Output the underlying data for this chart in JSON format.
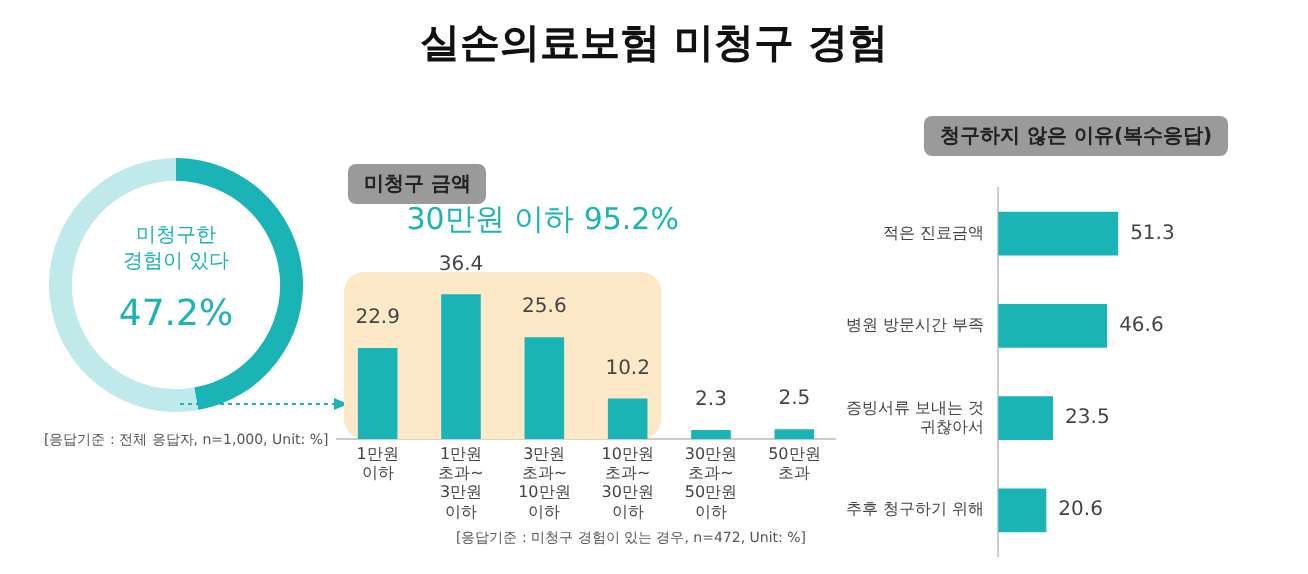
{
  "chart_data": [
    {
      "type": "donut",
      "title": "실손의료보험 미청구 경험",
      "categories": [
        "미청구한 경험이 있다",
        null
      ],
      "values": [
        47.2,
        52.8
      ],
      "colors": [
        "#1ab3b6",
        "#bfe9ea"
      ],
      "value_labels": [
        "47.2%",
        null
      ],
      "legend": false,
      "annotations": [
        "[응답기준 : 전체 응답자, n=1,000, Unit: %]"
      ]
    },
    {
      "type": "bar",
      "title": "미청구 금액",
      "categories": [
        "1만원 이하",
        "1만원 초과~3만원 이하",
        "3만원 초과~10만원 이하",
        "10만원 초과~30만원 이하",
        "30만원 초과~50만원 이하",
        "50만원 초과"
      ],
      "values": [
        22.9,
        36.4,
        25.6,
        10.2,
        2.3,
        2.5
      ],
      "color": "#1ab3b6",
      "data_labels": true,
      "tick_labels": "x",
      "grid": false,
      "legend": false,
      "bands": [
        {
          "axis": "x",
          "from": "1만원 이하",
          "to": "10만원 초과~30만원 이하",
          "label": "30만원 이하 95.2%",
          "color": "#fde9c8"
        }
      ],
      "annotations": [
        "[응답기준 : 미청구 경험이 있는 경우, n=472, Unit: %]"
      ]
    },
    {
      "type": "bar",
      "orientation": "horizontal",
      "title": "청구하지 않은 이유(복수응답)",
      "categories": [
        "적은 진료금액",
        "병원 방문시간 부족",
        "증빙서류 보내는 것 귀찮아서",
        "추후 청구하기 위해"
      ],
      "values": [
        51.3,
        46.6,
        23.5,
        20.6
      ],
      "color": "#1ab3b6",
      "data_labels": true,
      "tick_labels": "y",
      "grid": false,
      "legend": false
    }
  ]
}
